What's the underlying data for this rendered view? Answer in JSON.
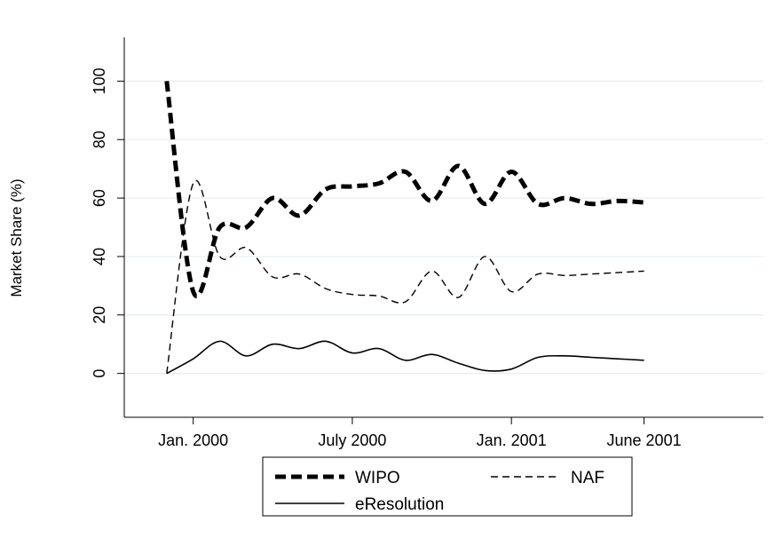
{
  "chart_data": {
    "type": "line",
    "title": "",
    "xlabel": "",
    "ylabel": "Market Share (%)",
    "ylim": [
      -15,
      115
    ],
    "yticks": [
      0,
      20,
      40,
      60,
      80,
      100
    ],
    "xlim": [
      -2.6,
      21.5
    ],
    "xticks": [
      {
        "x": 0,
        "label": "Jan. 2000"
      },
      {
        "x": 6,
        "label": "July 2000"
      },
      {
        "x": 12,
        "label": "Jan. 2001"
      },
      {
        "x": 17,
        "label": "June 2001"
      }
    ],
    "grid": "horizontal",
    "legend_position": "bottom",
    "series": [
      {
        "name": "WIPO",
        "style": "thick-dashed",
        "x": [
          -1,
          0,
          1,
          2,
          3,
          4,
          5,
          6,
          7,
          8,
          9,
          10,
          11,
          12,
          13,
          14,
          15,
          16,
          17
        ],
        "values": [
          100,
          28,
          50,
          50,
          60,
          54,
          63,
          64,
          65,
          69,
          59,
          71,
          58,
          69,
          58,
          60,
          58,
          59,
          58.5
        ]
      },
      {
        "name": "NAF",
        "style": "thin-dashed",
        "x": [
          -1,
          0,
          1,
          2,
          3,
          4,
          5,
          6,
          7,
          8,
          9,
          10,
          11,
          12,
          13,
          14,
          15,
          16,
          17
        ],
        "values": [
          0,
          65,
          40,
          43,
          33,
          34,
          29,
          27,
          26.5,
          24.5,
          35,
          26,
          40,
          28,
          34,
          33.5,
          34,
          34.5,
          35
        ]
      },
      {
        "name": "eResolution",
        "style": "solid",
        "x": [
          -1,
          0,
          1,
          2,
          3,
          4,
          5,
          6,
          7,
          8,
          9,
          10,
          11,
          12,
          13,
          14,
          15,
          16,
          17
        ],
        "values": [
          0,
          5,
          11,
          6,
          10,
          8.5,
          11,
          7,
          8.5,
          4.5,
          6.5,
          3.5,
          1,
          1.5,
          5.5,
          6,
          5.5,
          5,
          4.5
        ]
      }
    ]
  }
}
